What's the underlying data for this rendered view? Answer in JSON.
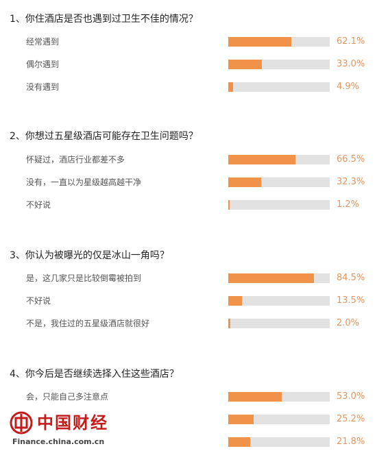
{
  "questions": [
    {
      "title": "1、你住酒店是否也遇到过卫生不佳的情况？",
      "options": [
        {
          "label": "经常遇到",
          "percent_text": "62.1%",
          "value": 62.1
        },
        {
          "label": "偶尔遇到",
          "percent_text": "33.0%",
          "value": 33.0
        },
        {
          "label": "没有遇到",
          "percent_text": "4.9%",
          "value": 4.9
        }
      ]
    },
    {
      "title": "2、你想过五星级酒店可能存在卫生问题吗？",
      "options": [
        {
          "label": "怀疑过，酒店行业都差不多",
          "percent_text": "66.5%",
          "value": 66.5
        },
        {
          "label": "没有，一直以为星级越高越干净",
          "percent_text": "32.3%",
          "value": 32.3
        },
        {
          "label": "不好说",
          "percent_text": "1.2%",
          "value": 1.2
        }
      ]
    },
    {
      "title": "3、你认为被曝光的仅是冰山一角吗？",
      "options": [
        {
          "label": "是，这几家只是比较倒霉被拍到",
          "percent_text": "84.5%",
          "value": 84.5
        },
        {
          "label": "不好说",
          "percent_text": "13.5%",
          "value": 13.5
        },
        {
          "label": "不是，我住过的五星级酒店就很好",
          "percent_text": "2.0%",
          "value": 2.0
        }
      ]
    },
    {
      "title": "4、你今后是否继续选择入住这些酒店？",
      "options": [
        {
          "label": "会，只能自己多注意点",
          "percent_text": "53.0%",
          "value": 53.0
        },
        {
          "label": "",
          "percent_text": "25.2%",
          "value": 25.2
        },
        {
          "label": "",
          "percent_text": "21.8%",
          "value": 21.8
        }
      ]
    }
  ],
  "colors": {
    "bar_fill": "#f0924a",
    "bar_track": "#e2e2e2",
    "percent_text": "#e8935a",
    "watermark_red": "#c31a1a"
  },
  "watermark": {
    "logo_text": "中国财经",
    "url": "Finance.china.com.cn",
    "icon": "china-seal-icon"
  }
}
